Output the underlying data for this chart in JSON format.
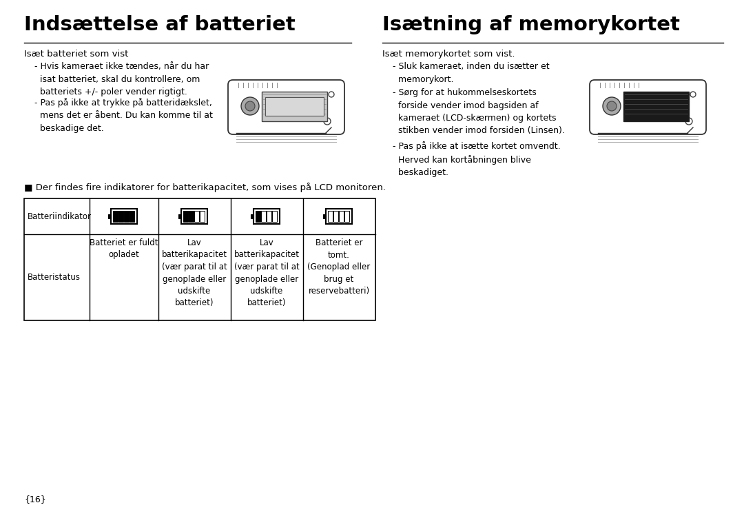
{
  "bg_color": "#ffffff",
  "title_left": "Indsættelse af batteriet",
  "title_right": "Isætning af memorykortet",
  "subtitle_left": "Isæt batteriet som vist",
  "subtitle_right": "Isæt memorykortet som vist.",
  "bullet1_left": "- Hvis kameraet ikke tændes, når du har\n  isat batteriet, skal du kontrollere, om\n  batteriets +/- poler vender rigtigt.",
  "bullet2_left": "- Pas på ikke at trykke på batteridækslet,\n  mens det er åbent. Du kan komme til at\n  beskadige det.",
  "bullet1_right": "- Sluk kameraet, inden du isætter et\n  memorykort.",
  "bullet2_right": "- Sørg for at hukommelseskortets\n  forside vender imod bagsiden af\n  kameraet (LCD-skærmen) og kortets\n  stikben vender imod forsiden (Linsen).",
  "bullet3_right": "- Pas på ikke at isætte kortet omvendt.\n  Herved kan kortåbningen blive\n  beskadiget.",
  "indicator_note": "■ Der findes fire indikatorer for batterikapacitet, som vises på LCD monitoren.",
  "table_row1_label": "Batteriindikator",
  "table_row2_label": "Batteristatus",
  "table_col2_status": "Batteriet er fuldt\nopladet",
  "table_col3_status": "Lav\nbatterikapacitet\n(vær parat til at\ngenoplade eller\nudskifte\nbatteriet)",
  "table_col4_status": "Lav\nbatterikapacitet\n(vær parat til at\ngenoplade eller\nudskifte\nbatteriet)",
  "table_col5_status": "Batteriet er\ntomt.\n(Genoplad eller\nbrug et\nreservebatteri)",
  "page_number": "{16}"
}
